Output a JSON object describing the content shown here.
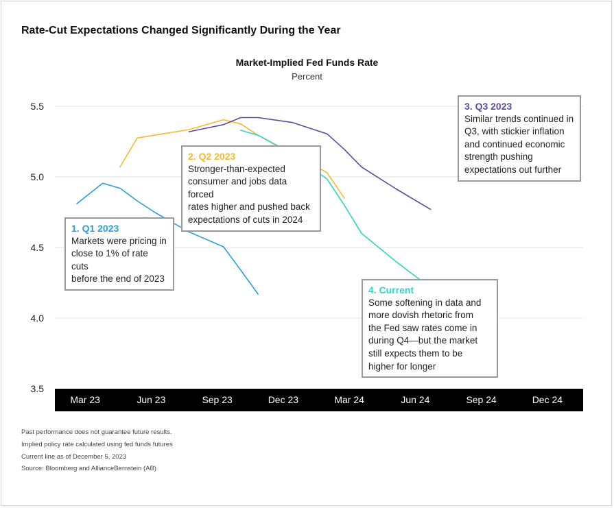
{
  "title": "Rate-Cut Expectations Changed Significantly During the Year",
  "chart_data": {
    "type": "line",
    "title": "Market-Implied Fed Funds Rate",
    "subtitle": "Percent",
    "ylim": [
      3.5,
      5.5
    ],
    "y_ticks": [
      "5.5",
      "5.0",
      "4.5",
      "4.0",
      "3.5"
    ],
    "x_ticks": [
      "Mar 23",
      "Jun 23",
      "Sep 23",
      "Dec 23",
      "Mar 24",
      "Jun 24",
      "Sep 24",
      "Dec 24"
    ],
    "grid": true,
    "series": [
      {
        "color": "#2a9fd8",
        "points": [
          [
            0,
            4.81
          ],
          [
            1.5,
            4.955
          ],
          [
            2.5,
            4.92
          ],
          [
            3.5,
            4.83
          ],
          [
            4.5,
            4.75
          ],
          [
            6.5,
            4.61
          ],
          [
            8.5,
            4.505
          ],
          [
            9.5,
            4.34
          ],
          [
            10.5,
            4.17
          ]
        ]
      },
      {
        "color": "#f4b92d",
        "points": [
          [
            2.5,
            5.07
          ],
          [
            3.5,
            5.275
          ],
          [
            6.5,
            5.335
          ],
          [
            8.5,
            5.405
          ],
          [
            9.5,
            5.375
          ],
          [
            10.5,
            5.295
          ],
          [
            12.5,
            5.165
          ],
          [
            14.5,
            5.03
          ],
          [
            15.5,
            4.85
          ]
        ]
      },
      {
        "color": "#5c4a9f",
        "points": [
          [
            6.5,
            5.32
          ],
          [
            8.5,
            5.37
          ],
          [
            9.5,
            5.42
          ],
          [
            10.5,
            5.42
          ],
          [
            12.5,
            5.385
          ],
          [
            14.5,
            5.305
          ],
          [
            15.5,
            5.195
          ],
          [
            16.5,
            5.07
          ],
          [
            18.5,
            4.915
          ],
          [
            20.5,
            4.77
          ]
        ]
      },
      {
        "color": "#2fd5c3",
        "points": [
          [
            9.5,
            5.33
          ],
          [
            10.5,
            5.295
          ],
          [
            12.5,
            5.16
          ],
          [
            14.5,
            4.985
          ],
          [
            15.5,
            4.8
          ],
          [
            16.5,
            4.6
          ],
          [
            18.5,
            4.4
          ],
          [
            20.5,
            4.215
          ],
          [
            22.5,
            3.92
          ]
        ]
      }
    ],
    "annotations": [
      {
        "heading": "1. Q1 2023",
        "lines": [
          "Markets were pricing in",
          "close to 1% of rate cuts",
          "before the end of 2023"
        ]
      },
      {
        "heading": "2. Q2 2023",
        "lines": [
          "Stronger-than-expected",
          "consumer and jobs data forced",
          "rates higher and pushed back",
          "expectations of cuts in 2024"
        ]
      },
      {
        "heading": "3. Q3  2023",
        "lines": [
          "Similar trends continued in",
          "Q3, with stickier inflation",
          "and continued economic",
          "strength pushing",
          "expectations out further"
        ]
      },
      {
        "heading": "4. Current",
        "lines": [
          "Some softening in data and",
          "more dovish rhetoric from",
          "the Fed saw rates come in",
          "during Q4—but the market",
          "still expects them to be",
          "higher for longer"
        ]
      }
    ]
  },
  "footnotes": [
    "Past performance does not guarantee future results.",
    "Implied policy rate calculated using fed funds futures",
    "Current line as of December 5, 2023",
    "Source: Bloomberg and AllianceBernstein (AB)"
  ]
}
